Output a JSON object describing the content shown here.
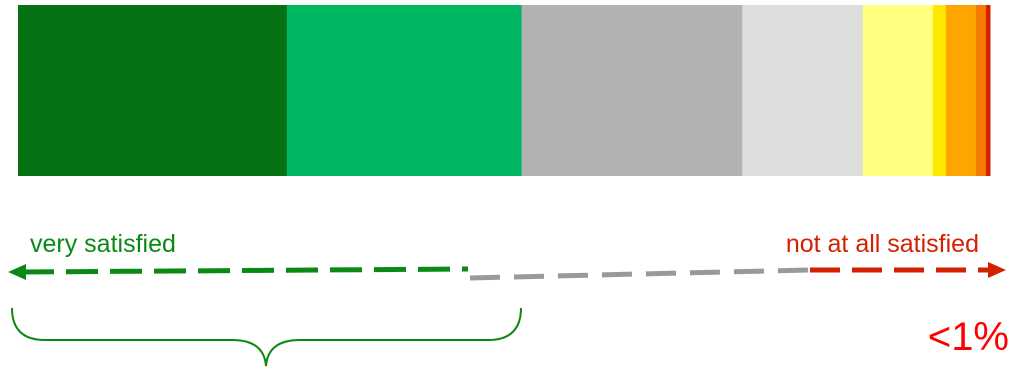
{
  "chart_data": {
    "type": "bar",
    "orientation": "horizontal-stacked",
    "segments": [
      {
        "value": 26.8,
        "color": "#067115"
      },
      {
        "value": 23.4,
        "color": "#00B764"
      },
      {
        "value": 22.0,
        "color": "#B2B2B2"
      },
      {
        "value": 12.0,
        "color": "#DDDDDD"
      },
      {
        "value": 7.0,
        "color": "#FFFF80"
      },
      {
        "value": 1.3,
        "color": "#FFE800"
      },
      {
        "value": 3.0,
        "color": "#FFA500"
      },
      {
        "value": 1.0,
        "color": "#F47A00"
      },
      {
        "value": 0.4,
        "color": "#D42000"
      }
    ],
    "scale_labels": {
      "left": "very satisfied",
      "right": "not at all satisfied"
    },
    "annotation": "<1%",
    "colors": {
      "satisfied": "#0A8A14",
      "neutral": "#999999",
      "dissatisfied": "#D42000"
    }
  }
}
